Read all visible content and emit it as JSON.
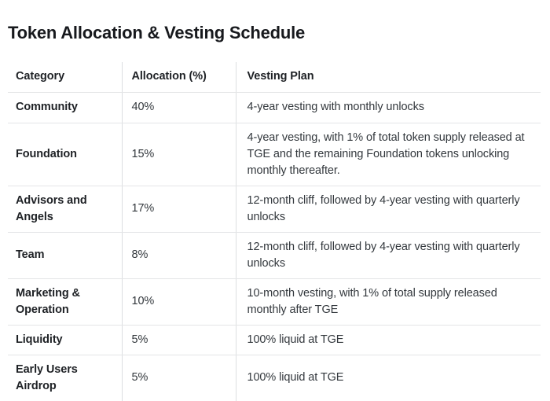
{
  "page": {
    "title": "Token Allocation & Vesting Schedule"
  },
  "colors": {
    "background": "#ffffff",
    "text_heading": "#17191d",
    "text_bold": "#1e2125",
    "text_body": "#33383d",
    "border_horizontal": "#e4e5e7",
    "border_vertical": "#dcdee0"
  },
  "table": {
    "columns": [
      "Category",
      "Allocation (%)",
      "Vesting Plan"
    ],
    "rows": [
      {
        "category": "Community",
        "allocation": "40%",
        "vesting_plan": "4-year vesting with monthly unlocks"
      },
      {
        "category": "Foundation",
        "allocation": "15%",
        "vesting_plan": "4-year vesting, with 1% of total token supply released at TGE and the remaining Foundation tokens unlocking monthly thereafter."
      },
      {
        "category": "Advisors and Angels",
        "allocation": "17%",
        "vesting_plan": "12-month cliff, followed by 4-year vesting with quarterly unlocks"
      },
      {
        "category": "Team",
        "allocation": "8%",
        "vesting_plan": "12-month cliff, followed by 4-year vesting with quarterly unlocks"
      },
      {
        "category": "Marketing & Operation",
        "allocation": "10%",
        "vesting_plan": "10-month vesting, with 1% of total supply released monthly after TGE"
      },
      {
        "category": "Liquidity",
        "allocation": "5%",
        "vesting_plan": "100% liquid at TGE"
      },
      {
        "category": "Early Users Airdrop",
        "allocation": "5%",
        "vesting_plan": "100% liquid at TGE"
      }
    ]
  }
}
